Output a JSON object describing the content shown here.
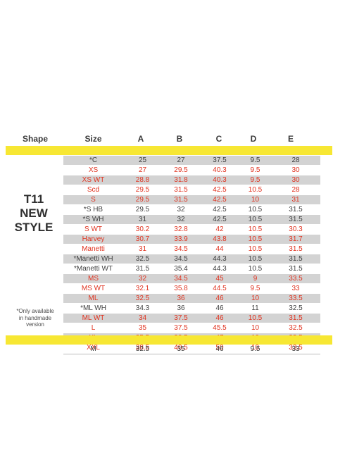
{
  "headers": {
    "shape": "Shape",
    "size": "Size",
    "a": "A",
    "b": "B",
    "c": "C",
    "d": "D",
    "e": "E"
  },
  "style_title": [
    "T11",
    "NEW",
    "STYLE"
  ],
  "note": [
    "*Only available",
    "in handmade",
    "version"
  ],
  "colors": {
    "red": "#e0321f",
    "yellow": "#f7e733",
    "gray": "#d3d3d3",
    "dark": "#3f3f3f"
  },
  "rows": [
    {
      "cells": [
        "*C",
        "25",
        "27",
        "37.5",
        "9.5",
        "28"
      ],
      "red": false,
      "gray": true
    },
    {
      "cells": [
        "XS",
        "27",
        "29.5",
        "40.3",
        "9.5",
        "30"
      ],
      "red": true,
      "gray": false
    },
    {
      "cells": [
        "XS WT",
        "28.8",
        "31.8",
        "40.3",
        "9.5",
        "30"
      ],
      "red": true,
      "gray": true
    },
    {
      "cells": [
        "Scd",
        "29.5",
        "31.5",
        "42.5",
        "10.5",
        "28"
      ],
      "red": true,
      "gray": false
    },
    {
      "cells": [
        "S",
        "29.5",
        "31.5",
        "42.5",
        "10",
        "31"
      ],
      "red": true,
      "gray": true
    },
    {
      "cells": [
        "*S HB",
        "29.5",
        "32",
        "42.5",
        "10.5",
        "31.5"
      ],
      "red": false,
      "gray": false
    },
    {
      "cells": [
        "*S WH",
        "31",
        "32",
        "42.5",
        "10.5",
        "31.5"
      ],
      "red": false,
      "gray": true
    },
    {
      "cells": [
        "S WT",
        "30.2",
        "32.8",
        "42",
        "10.5",
        "30.3"
      ],
      "red": true,
      "gray": false
    },
    {
      "cells": [
        "Harvey",
        "30.7",
        "33.9",
        "43.8",
        "10.5",
        "31.7"
      ],
      "red": true,
      "gray": true
    },
    {
      "cells": [
        "Manetti",
        "31",
        "34.5",
        "44",
        "10.5",
        "31.5"
      ],
      "red": true,
      "gray": false
    },
    {
      "cells": [
        "*Manetti WH",
        "32.5",
        "34.5",
        "44.3",
        "10.5",
        "31.5"
      ],
      "red": false,
      "gray": true
    },
    {
      "cells": [
        "*Manetti WT",
        "31.5",
        "35.4",
        "44.3",
        "10.5",
        "31.5"
      ],
      "red": false,
      "gray": false
    },
    {
      "cells": [
        "MS",
        "32",
        "34.5",
        "45",
        "9",
        "33.5"
      ],
      "red": true,
      "gray": true
    },
    {
      "cells": [
        "MS WT",
        "32.1",
        "35.8",
        "44.5",
        "9.5",
        "33"
      ],
      "red": true,
      "gray": false
    },
    {
      "cells": [
        "ML",
        "32.5",
        "36",
        "46",
        "10",
        "33.5"
      ],
      "red": true,
      "gray": true
    },
    {
      "cells": [
        "*ML WH",
        "34.3",
        "36",
        "46",
        "11",
        "32.5"
      ],
      "red": false,
      "gray": false
    },
    {
      "cells": [
        "ML WT",
        "34",
        "37.5",
        "46",
        "10.5",
        "31.5"
      ],
      "red": true,
      "gray": true
    },
    {
      "cells": [
        "L",
        "35",
        "37.5",
        "45.5",
        "10",
        "32.5"
      ],
      "red": true,
      "gray": false
    },
    {
      "cells": [
        "XL",
        "35.5",
        "38.5",
        "47",
        "10",
        "33.5"
      ],
      "red": true,
      "gray": true
    },
    {
      "cells": [
        "XXL",
        "38.5",
        "40.5",
        "50",
        "10",
        "33.5"
      ],
      "red": true,
      "gray": false
    }
  ],
  "bottom_row": [
    "M",
    "32.5",
    "35",
    "46",
    "9.5",
    "33"
  ]
}
